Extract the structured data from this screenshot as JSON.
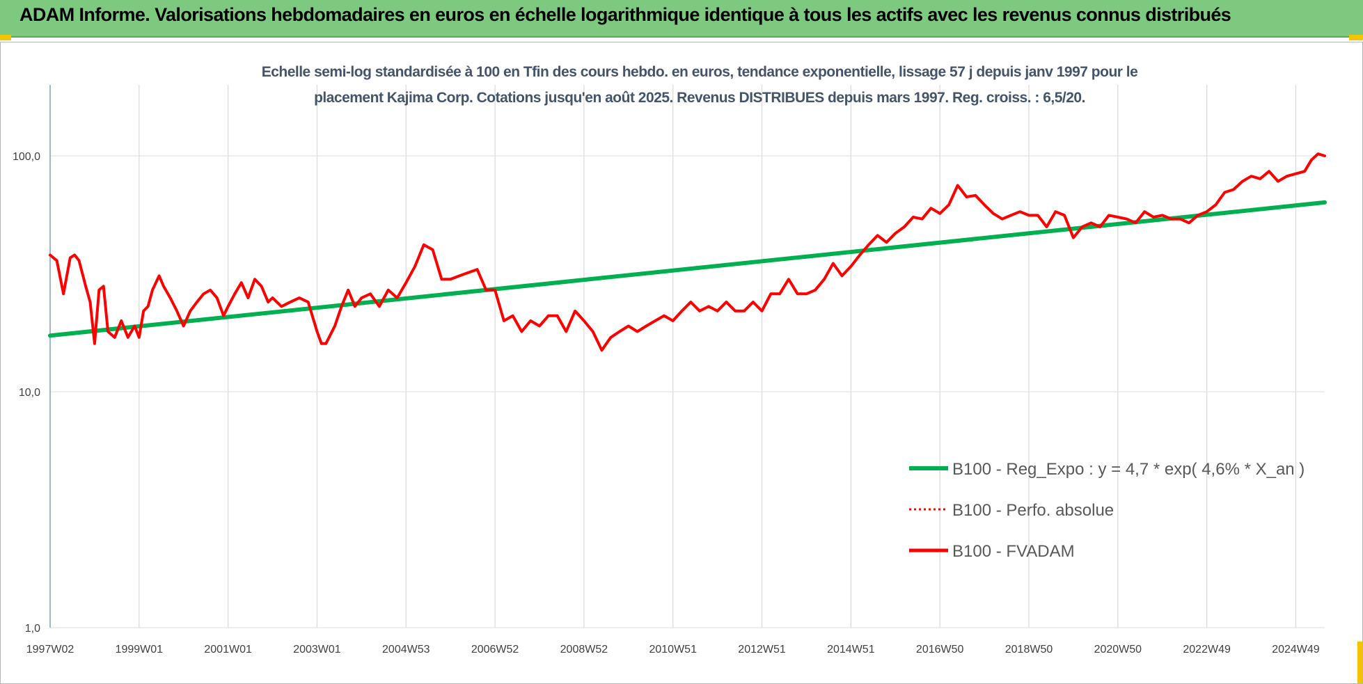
{
  "banner": {
    "title": "ADAM Informe. Valorisations hebdomadaires en euros en échelle logarithmique identique à tous les actifs avec les revenus connus distribués"
  },
  "colors": {
    "banner": "#7dc97f",
    "reg_expo": "#00b050",
    "fvadam": "#ff0000",
    "subtitle": "#44546a",
    "corner": "#f5c400"
  },
  "chart_data": {
    "type": "line",
    "subtitle": [
      "Echelle semi-log standardisée à 100 en Tfin des cours hebdo. en euros, tendance exponentielle, lissage 57 j depuis janv 1997 pour le",
      "placement Kajima Corp. Cotations jusqu'en août 2025.  Revenus DISTRIBUES depuis mars 1997. Reg. croiss. : 6,5/20."
    ],
    "y_scale": "log",
    "ylim": [
      1,
      100
    ],
    "y_ticks": [
      1,
      10,
      100
    ],
    "y_tick_labels": [
      "1,0",
      "10,0",
      "100,0"
    ],
    "xlim": [
      1997.0,
      2025.65
    ],
    "x_ticks": [
      1997.0,
      1999.0,
      2001.0,
      2003.0,
      2005.0,
      2007.0,
      2009.0,
      2011.0,
      2013.0,
      2015.0,
      2017.0,
      2019.0,
      2021.0,
      2023.0,
      2025.0
    ],
    "x_tick_labels": [
      "1997W02",
      "1999W01",
      "2001W01",
      "2003W01",
      "2004W53",
      "2006W52",
      "2008W52",
      "2010W51",
      "2012W51",
      "2014W51",
      "2016W50",
      "2018W50",
      "2020W50",
      "2022W49",
      "2024W49"
    ],
    "grid": "vertical",
    "legend_position": "right",
    "series": [
      {
        "name": "B100 - Reg_Expo : y = 4,7 * exp( 4,6% *  X_an )",
        "style": "solid-green",
        "x": [
          1997.0,
          2025.65
        ],
        "y": [
          17.3,
          63.5
        ]
      },
      {
        "name": "B100 - Perfo. absolue",
        "style": "dotted-red",
        "x": [],
        "y": []
      },
      {
        "name": "B100 - FVADAM",
        "style": "solid-red",
        "x": [
          1997.0,
          1997.15,
          1997.3,
          1997.45,
          1997.55,
          1997.65,
          1997.8,
          1997.9,
          1998.0,
          1998.1,
          1998.2,
          1998.3,
          1998.45,
          1998.6,
          1998.75,
          1998.9,
          1999.0,
          1999.1,
          1999.2,
          1999.3,
          1999.45,
          1999.55,
          1999.7,
          1999.85,
          2000.0,
          2000.15,
          2000.3,
          2000.45,
          2000.6,
          2000.75,
          2000.9,
          2001.0,
          2001.15,
          2001.3,
          2001.45,
          2001.6,
          2001.75,
          2001.9,
          2002.0,
          2002.2,
          2002.4,
          2002.6,
          2002.8,
          2003.0,
          2003.1,
          2003.2,
          2003.4,
          2003.55,
          2003.7,
          2003.85,
          2004.0,
          2004.2,
          2004.4,
          2004.6,
          2004.8,
          2005.0,
          2005.2,
          2005.4,
          2005.6,
          2005.8,
          2006.0,
          2006.2,
          2006.4,
          2006.6,
          2006.8,
          2007.0,
          2007.2,
          2007.4,
          2007.6,
          2007.8,
          2008.0,
          2008.2,
          2008.4,
          2008.6,
          2008.8,
          2009.0,
          2009.2,
          2009.4,
          2009.6,
          2009.8,
          2010.0,
          2010.2,
          2010.4,
          2010.6,
          2010.8,
          2011.0,
          2011.2,
          2011.4,
          2011.6,
          2011.8,
          2012.0,
          2012.2,
          2012.4,
          2012.6,
          2012.8,
          2013.0,
          2013.2,
          2013.4,
          2013.6,
          2013.8,
          2014.0,
          2014.2,
          2014.4,
          2014.6,
          2014.8,
          2015.0,
          2015.2,
          2015.4,
          2015.6,
          2015.8,
          2016.0,
          2016.2,
          2016.4,
          2016.6,
          2016.8,
          2017.0,
          2017.2,
          2017.4,
          2017.6,
          2017.8,
          2018.0,
          2018.2,
          2018.4,
          2018.6,
          2018.8,
          2019.0,
          2019.2,
          2019.4,
          2019.6,
          2019.8,
          2020.0,
          2020.2,
          2020.4,
          2020.6,
          2020.8,
          2021.0,
          2021.2,
          2021.4,
          2021.6,
          2021.8,
          2022.0,
          2022.2,
          2022.4,
          2022.6,
          2022.8,
          2023.0,
          2023.2,
          2023.4,
          2023.6,
          2023.8,
          2024.0,
          2024.2,
          2024.4,
          2024.6,
          2024.8,
          2025.0,
          2025.2,
          2025.35,
          2025.5,
          2025.65
        ],
        "y": [
          38,
          36,
          26,
          37,
          38,
          36,
          28,
          24,
          16,
          27,
          28,
          18,
          17,
          20,
          17,
          19,
          17,
          22,
          23,
          27,
          31,
          28,
          25,
          22,
          19,
          22,
          24,
          26,
          27,
          25,
          21,
          23,
          26,
          29,
          25,
          30,
          28,
          24,
          25,
          23,
          24,
          25,
          24,
          18,
          16,
          16,
          19,
          23,
          27,
          23,
          25,
          26,
          23,
          27,
          25,
          29,
          34,
          42,
          40,
          30,
          30,
          31,
          32,
          33,
          27,
          27,
          20,
          21,
          18,
          20,
          19,
          21,
          21,
          18,
          22,
          20,
          18,
          15,
          17,
          18,
          19,
          18,
          19,
          20,
          21,
          20,
          22,
          24,
          22,
          23,
          22,
          24,
          22,
          22,
          24,
          22,
          26,
          26,
          30,
          26,
          26,
          27,
          30,
          35,
          31,
          34,
          38,
          42,
          46,
          43,
          47,
          50,
          55,
          54,
          60,
          57,
          62,
          75,
          67,
          68,
          62,
          57,
          54,
          56,
          58,
          56,
          56,
          50,
          58,
          56,
          45,
          50,
          52,
          50,
          56,
          55,
          54,
          52,
          58,
          55,
          56,
          54,
          54,
          52,
          56,
          58,
          62,
          70,
          72,
          78,
          82,
          80,
          86,
          78,
          82,
          84,
          86,
          96,
          102,
          100
        ]
      }
    ]
  }
}
